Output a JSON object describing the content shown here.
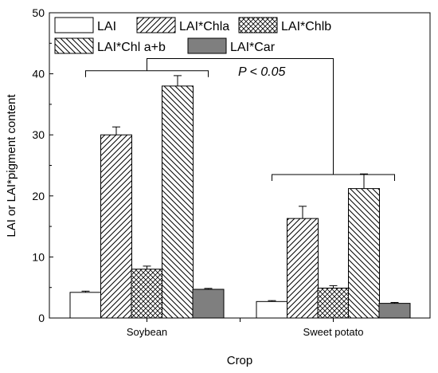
{
  "chart_data": {
    "type": "bar",
    "categories": [
      "Soybean",
      "Sweet potato"
    ],
    "series": [
      {
        "name": "LAI",
        "values": [
          4.2,
          2.7
        ],
        "errors": [
          0.2,
          0.15
        ],
        "pattern": "solid-white"
      },
      {
        "name": "LAI*Chla",
        "values": [
          30.0,
          16.3
        ],
        "errors": [
          1.3,
          2.0
        ],
        "pattern": "diag-right"
      },
      {
        "name": "LAI*Chlb",
        "values": [
          8.0,
          4.9
        ],
        "errors": [
          0.5,
          0.4
        ],
        "pattern": "crosshatch"
      },
      {
        "name": "LAI*Chl a+b",
        "values": [
          38.0,
          21.2
        ],
        "errors": [
          1.7,
          2.4
        ],
        "pattern": "diag-left"
      },
      {
        "name": "LAI*Car",
        "values": [
          4.7,
          2.4
        ],
        "errors": [
          0.15,
          0.15
        ],
        "pattern": "solid-gray"
      }
    ],
    "xlabel": "Crop",
    "ylabel": "LAI or LAI*pigment content",
    "ylim": [
      0,
      50
    ],
    "yticks": [
      0,
      10,
      20,
      30,
      40,
      50
    ],
    "legend_position": "top-left",
    "annotation": {
      "text": "P < 0.05",
      "bracket_levels": [
        40.5,
        23.5
      ],
      "top_level": 42.5
    },
    "colors": {
      "bar_stroke": "#000000",
      "solid_gray": "#7f7f7f",
      "hatch": "#000000"
    }
  }
}
